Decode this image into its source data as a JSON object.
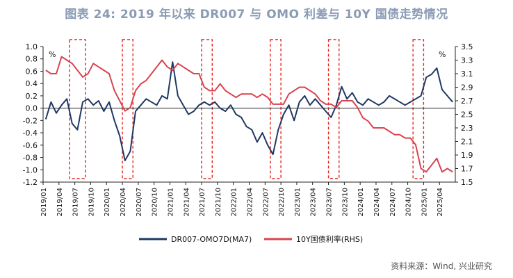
{
  "title": "图表 24: 2019 年以来 DR007 与 OMO 利差与 10Y 国债走势情况",
  "source": "资料来源：Wind, 兴业研究",
  "colors": {
    "spread": "#1f3864",
    "yield": "#d9434e",
    "box": "#e8231f",
    "title": "#8a9bb4"
  },
  "chart_data": {
    "type": "line",
    "left_axis": {
      "unit_label": "%",
      "ylim": [
        -1.2,
        1.0
      ],
      "ticks": [
        "1.0",
        "0.8",
        "0.6",
        "0.4",
        "0.2",
        "0.0",
        "-0.2",
        "-0.4",
        "-0.6",
        "-0.8",
        "-1.0",
        "-1.2"
      ]
    },
    "right_axis": {
      "unit_label": "%",
      "ylim": [
        1.5,
        3.5
      ],
      "ticks": [
        "3.5",
        "3.3",
        "3.1",
        "2.9",
        "2.7",
        "2.5",
        "2.3",
        "2.1",
        "1.9",
        "1.7",
        "1.5"
      ]
    },
    "x_ticks": [
      "2019/01",
      "2019/04",
      "2019/07",
      "2019/10",
      "2020/01",
      "2020/04",
      "2020/07",
      "2020/10",
      "2021/01",
      "2021/04",
      "2021/07",
      "2021/10",
      "2022/01",
      "2022/04",
      "2022/07",
      "2022/10",
      "2023/01",
      "2023/04",
      "2023/07",
      "2023/10",
      "2024/01",
      "2024/04",
      "2024/07",
      "2024/10",
      "2025/01",
      "2025/04"
    ],
    "x_range": [
      "2019/01",
      "2025/06"
    ],
    "series": [
      {
        "name": "DR007-OMO7D(MA7)",
        "axis": "left",
        "points": [
          [
            "2019/01",
            -0.18
          ],
          [
            "2019/02",
            0.1
          ],
          [
            "2019/03",
            -0.08
          ],
          [
            "2019/04",
            0.05
          ],
          [
            "2019/05",
            0.15
          ],
          [
            "2019/06",
            -0.25
          ],
          [
            "2019/07",
            -0.35
          ],
          [
            "2019/08",
            0.1
          ],
          [
            "2019/09",
            0.15
          ],
          [
            "2019/10",
            0.05
          ],
          [
            "2019/11",
            0.12
          ],
          [
            "2019/12",
            -0.05
          ],
          [
            "2020/01",
            0.1
          ],
          [
            "2020/02",
            -0.2
          ],
          [
            "2020/03",
            -0.45
          ],
          [
            "2020/04",
            -0.85
          ],
          [
            "2020/05",
            -0.7
          ],
          [
            "2020/06",
            -0.05
          ],
          [
            "2020/07",
            0.05
          ],
          [
            "2020/08",
            0.15
          ],
          [
            "2020/09",
            0.1
          ],
          [
            "2020/10",
            0.05
          ],
          [
            "2020/11",
            0.2
          ],
          [
            "2020/12",
            0.15
          ],
          [
            "2021/01",
            0.75
          ],
          [
            "2021/02",
            0.2
          ],
          [
            "2021/03",
            0.05
          ],
          [
            "2021/04",
            -0.1
          ],
          [
            "2021/05",
            -0.05
          ],
          [
            "2021/06",
            0.05
          ],
          [
            "2021/07",
            0.1
          ],
          [
            "2021/08",
            0.05
          ],
          [
            "2021/09",
            0.1
          ],
          [
            "2021/10",
            0.0
          ],
          [
            "2021/11",
            -0.05
          ],
          [
            "2021/12",
            0.05
          ],
          [
            "2022/01",
            -0.1
          ],
          [
            "2022/02",
            -0.15
          ],
          [
            "2022/03",
            -0.3
          ],
          [
            "2022/04",
            -0.35
          ],
          [
            "2022/05",
            -0.55
          ],
          [
            "2022/06",
            -0.4
          ],
          [
            "2022/07",
            -0.6
          ],
          [
            "2022/08",
            -0.75
          ],
          [
            "2022/09",
            -0.35
          ],
          [
            "2022/10",
            -0.1
          ],
          [
            "2022/11",
            0.05
          ],
          [
            "2022/12",
            -0.2
          ],
          [
            "2023/01",
            0.1
          ],
          [
            "2023/02",
            0.2
          ],
          [
            "2023/03",
            0.05
          ],
          [
            "2023/04",
            0.15
          ],
          [
            "2023/05",
            0.05
          ],
          [
            "2023/06",
            -0.05
          ],
          [
            "2023/07",
            -0.15
          ],
          [
            "2023/08",
            0.05
          ],
          [
            "2023/09",
            0.35
          ],
          [
            "2023/10",
            0.15
          ],
          [
            "2023/11",
            0.25
          ],
          [
            "2023/12",
            0.1
          ],
          [
            "2024/01",
            0.05
          ],
          [
            "2024/02",
            0.15
          ],
          [
            "2024/03",
            0.1
          ],
          [
            "2024/04",
            0.05
          ],
          [
            "2024/05",
            0.1
          ],
          [
            "2024/06",
            0.2
          ],
          [
            "2024/07",
            0.15
          ],
          [
            "2024/08",
            0.1
          ],
          [
            "2024/09",
            0.05
          ],
          [
            "2024/10",
            0.1
          ],
          [
            "2024/11",
            0.15
          ],
          [
            "2024/12",
            0.2
          ],
          [
            "2025/01",
            0.5
          ],
          [
            "2025/02",
            0.55
          ],
          [
            "2025/03",
            0.65
          ],
          [
            "2025/04",
            0.3
          ],
          [
            "2025/05",
            0.2
          ],
          [
            "2025/06",
            0.1
          ]
        ]
      },
      {
        "name": "10Y国债利率(RHS)",
        "axis": "right",
        "points": [
          [
            "2019/01",
            3.15
          ],
          [
            "2019/02",
            3.1
          ],
          [
            "2019/03",
            3.1
          ],
          [
            "2019/04",
            3.35
          ],
          [
            "2019/05",
            3.3
          ],
          [
            "2019/06",
            3.25
          ],
          [
            "2019/07",
            3.15
          ],
          [
            "2019/08",
            3.05
          ],
          [
            "2019/09",
            3.1
          ],
          [
            "2019/10",
            3.25
          ],
          [
            "2019/11",
            3.2
          ],
          [
            "2019/12",
            3.15
          ],
          [
            "2020/01",
            3.1
          ],
          [
            "2020/02",
            2.85
          ],
          [
            "2020/03",
            2.7
          ],
          [
            "2020/04",
            2.55
          ],
          [
            "2020/05",
            2.6
          ],
          [
            "2020/06",
            2.85
          ],
          [
            "2020/07",
            2.95
          ],
          [
            "2020/08",
            3.0
          ],
          [
            "2020/09",
            3.1
          ],
          [
            "2020/10",
            3.2
          ],
          [
            "2020/11",
            3.3
          ],
          [
            "2020/12",
            3.2
          ],
          [
            "2021/01",
            3.15
          ],
          [
            "2021/02",
            3.25
          ],
          [
            "2021/03",
            3.2
          ],
          [
            "2021/04",
            3.15
          ],
          [
            "2021/05",
            3.1
          ],
          [
            "2021/06",
            3.1
          ],
          [
            "2021/07",
            2.9
          ],
          [
            "2021/08",
            2.85
          ],
          [
            "2021/09",
            2.85
          ],
          [
            "2021/10",
            2.95
          ],
          [
            "2021/11",
            2.85
          ],
          [
            "2021/12",
            2.8
          ],
          [
            "2022/01",
            2.75
          ],
          [
            "2022/02",
            2.8
          ],
          [
            "2022/03",
            2.8
          ],
          [
            "2022/04",
            2.8
          ],
          [
            "2022/05",
            2.75
          ],
          [
            "2022/06",
            2.8
          ],
          [
            "2022/07",
            2.75
          ],
          [
            "2022/08",
            2.65
          ],
          [
            "2022/09",
            2.65
          ],
          [
            "2022/10",
            2.65
          ],
          [
            "2022/11",
            2.8
          ],
          [
            "2022/12",
            2.85
          ],
          [
            "2023/01",
            2.9
          ],
          [
            "2023/02",
            2.9
          ],
          [
            "2023/03",
            2.85
          ],
          [
            "2023/04",
            2.8
          ],
          [
            "2023/05",
            2.7
          ],
          [
            "2023/06",
            2.65
          ],
          [
            "2023/07",
            2.65
          ],
          [
            "2023/08",
            2.6
          ],
          [
            "2023/09",
            2.7
          ],
          [
            "2023/10",
            2.7
          ],
          [
            "2023/11",
            2.7
          ],
          [
            "2023/12",
            2.6
          ],
          [
            "2024/01",
            2.45
          ],
          [
            "2024/02",
            2.4
          ],
          [
            "2024/03",
            2.3
          ],
          [
            "2024/04",
            2.3
          ],
          [
            "2024/05",
            2.3
          ],
          [
            "2024/06",
            2.25
          ],
          [
            "2024/07",
            2.2
          ],
          [
            "2024/08",
            2.2
          ],
          [
            "2024/09",
            2.15
          ],
          [
            "2024/10",
            2.15
          ],
          [
            "2024/11",
            2.05
          ],
          [
            "2024/12",
            1.7
          ],
          [
            "2025/01",
            1.65
          ],
          [
            "2025/02",
            1.75
          ],
          [
            "2025/03",
            1.85
          ],
          [
            "2025/04",
            1.65
          ],
          [
            "2025/05",
            1.7
          ],
          [
            "2025/06",
            1.65
          ]
        ]
      }
    ],
    "highlight_boxes": [
      [
        "2019/06",
        "2019/08"
      ],
      [
        "2020/04",
        "2020/05"
      ],
      [
        "2021/07",
        "2021/08"
      ],
      [
        "2022/08",
        "2022/09"
      ],
      [
        "2023/07",
        "2023/08"
      ],
      [
        "2024/11",
        "2024/12"
      ]
    ],
    "legend": {
      "placement": "bottom-center"
    }
  }
}
